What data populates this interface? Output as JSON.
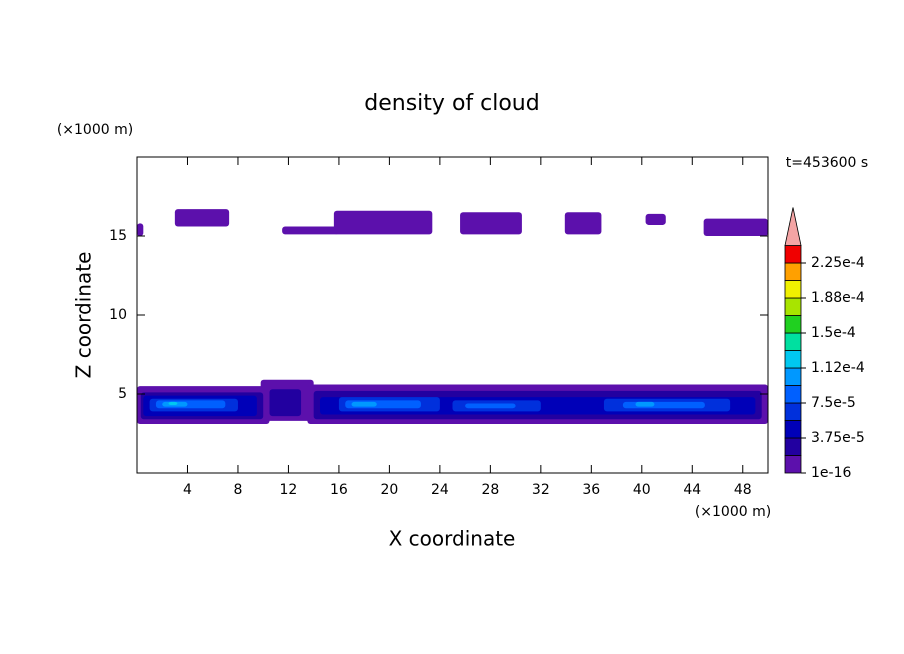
{
  "chart_data": {
    "type": "contour",
    "title": "density of cloud",
    "xlabel": "X coordinate",
    "ylabel": "Z coordinate",
    "xunit": "(×1000 m)",
    "yunit": "(×1000 m)",
    "annotation": "t=453600 s",
    "xlim": [
      0,
      50
    ],
    "ylim": [
      0,
      20
    ],
    "xticks": [
      4,
      8,
      12,
      16,
      20,
      24,
      28,
      32,
      36,
      40,
      44,
      48
    ],
    "yticks": [
      5,
      10,
      15
    ],
    "colorbar": {
      "clim": [
        1e-16,
        0.00024375
      ],
      "colors": [
        "#5c10ac",
        "#2200a0",
        "#0000b8",
        "#0030dc",
        "#0060ff",
        "#0098ff",
        "#00c8f0",
        "#00e0a0",
        "#20d020",
        "#a8e400",
        "#f0f000",
        "#ffa000",
        "#f00000"
      ],
      "extend_color": "#f4a4a4",
      "ticks": [
        {
          "value": 1e-16,
          "label": "1e-16"
        },
        {
          "value": 3.75e-05,
          "label": "3.75e-5"
        },
        {
          "value": 7.5e-05,
          "label": "7.5e-5"
        },
        {
          "value": 0.0001125,
          "label": "1.12e-4"
        },
        {
          "value": 0.00015,
          "label": "1.5e-4"
        },
        {
          "value": 0.0001875,
          "label": "1.88e-4"
        },
        {
          "value": 0.000225,
          "label": "2.25e-4"
        }
      ]
    },
    "patches": [
      {
        "x": [
          0,
          0.5
        ],
        "z": [
          15,
          15.8
        ],
        "value": 1e-16
      },
      {
        "x": [
          3,
          7.3
        ],
        "z": [
          15.6,
          16.7
        ],
        "value": 1e-16
      },
      {
        "x": [
          11.5,
          16
        ],
        "z": [
          15.1,
          15.6
        ],
        "value": 1e-16
      },
      {
        "x": [
          15.6,
          23.4
        ],
        "z": [
          15.1,
          16.6
        ],
        "value": 1e-16
      },
      {
        "x": [
          25.6,
          30.5
        ],
        "z": [
          15.1,
          16.5
        ],
        "value": 1e-16
      },
      {
        "x": [
          33.9,
          36.8
        ],
        "z": [
          15.1,
          16.5
        ],
        "value": 1e-16
      },
      {
        "x": [
          40.3,
          41.9
        ],
        "z": [
          15.7,
          16.4
        ],
        "value": 1e-16
      },
      {
        "x": [
          44.9,
          50
        ],
        "z": [
          15,
          16.1
        ],
        "value": 1e-16
      },
      {
        "x": [
          0,
          10.5
        ],
        "z": [
          3.1,
          5.5
        ],
        "value": 1e-16
      },
      {
        "x": [
          9.8,
          14
        ],
        "z": [
          3.3,
          5.9
        ],
        "value": 1e-16
      },
      {
        "x": [
          13.5,
          50
        ],
        "z": [
          3.1,
          5.6
        ],
        "value": 1e-16
      },
      {
        "x": [
          0.3,
          10
        ],
        "z": [
          3.4,
          5.1
        ],
        "value": 2e-05
      },
      {
        "x": [
          10.5,
          13
        ],
        "z": [
          3.6,
          5.3
        ],
        "value": 2e-05
      },
      {
        "x": [
          14,
          49.5
        ],
        "z": [
          3.4,
          5.2
        ],
        "value": 2e-05
      },
      {
        "x": [
          0.5,
          9.5
        ],
        "z": [
          3.6,
          4.9
        ],
        "value": 4e-05
      },
      {
        "x": [
          14.5,
          49
        ],
        "z": [
          3.7,
          4.8
        ],
        "value": 4e-05
      },
      {
        "x": [
          1,
          8
        ],
        "z": [
          3.9,
          4.7
        ],
        "value": 6e-05
      },
      {
        "x": [
          16,
          24
        ],
        "z": [
          3.9,
          4.8
        ],
        "value": 6e-05
      },
      {
        "x": [
          25,
          32
        ],
        "z": [
          3.9,
          4.6
        ],
        "value": 6e-05
      },
      {
        "x": [
          37,
          47
        ],
        "z": [
          3.9,
          4.7
        ],
        "value": 6e-05
      },
      {
        "x": [
          1.5,
          7
        ],
        "z": [
          4.1,
          4.6
        ],
        "value": 8e-05
      },
      {
        "x": [
          16.5,
          22.5
        ],
        "z": [
          4.1,
          4.6
        ],
        "value": 8e-05
      },
      {
        "x": [
          26,
          30
        ],
        "z": [
          4.1,
          4.4
        ],
        "value": 8e-05
      },
      {
        "x": [
          38.5,
          45
        ],
        "z": [
          4.1,
          4.5
        ],
        "value": 8e-05
      },
      {
        "x": [
          2,
          4
        ],
        "z": [
          4.2,
          4.5
        ],
        "value": 9.5e-05
      },
      {
        "x": [
          17,
          19
        ],
        "z": [
          4.2,
          4.5
        ],
        "value": 9.5e-05
      },
      {
        "x": [
          39.5,
          41
        ],
        "z": [
          4.2,
          4.5
        ],
        "value": 9.5e-05
      },
      {
        "x": [
          2.5,
          3.2
        ],
        "z": [
          4.3,
          4.5
        ],
        "value": 0.000115
      }
    ]
  }
}
